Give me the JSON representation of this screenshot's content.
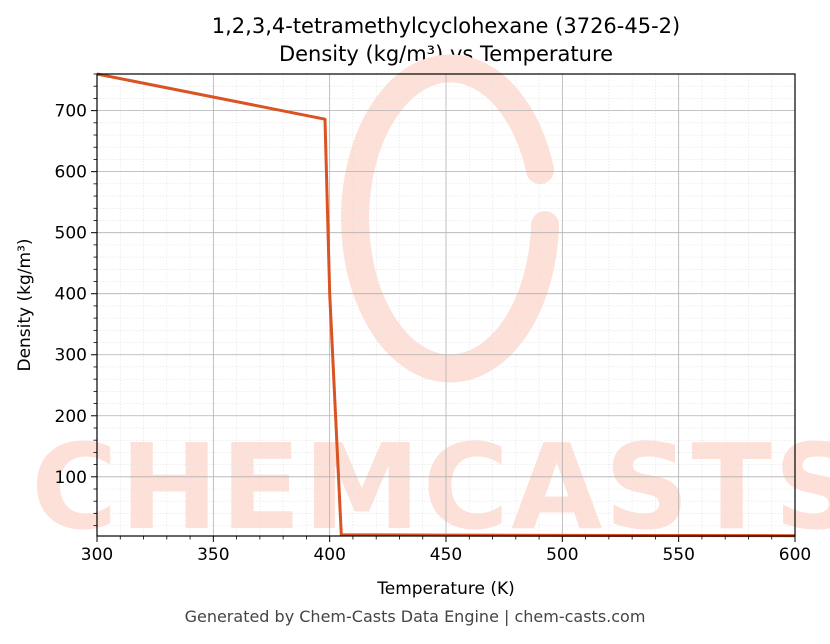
{
  "chart_data": {
    "type": "line",
    "title_line1": "1,2,3,4-tetramethylcyclohexane (3726-45-2)",
    "title_line2": "Density (kg/m³) vs Temperature",
    "xlabel": "Temperature (K)",
    "ylabel": "Density (kg/m³)",
    "xlim": [
      300,
      600
    ],
    "ylim": [
      3,
      760
    ],
    "xticks": [
      300,
      350,
      400,
      450,
      500,
      550,
      600
    ],
    "yticks": [
      100,
      200,
      300,
      400,
      500,
      600,
      700
    ],
    "grid": true,
    "series": [
      {
        "color": "#d95323",
        "x": [
          300,
          398,
          400,
          405,
          450,
          500,
          550,
          600
        ],
        "y": [
          760,
          686,
          400,
          5,
          4.5,
          4,
          3.8,
          3.5
        ]
      }
    ],
    "watermark_text": "CHEMCASTS",
    "watermark_color": "#fde0d8"
  },
  "footer": "Generated by Chem-Casts Data Engine | chem-casts.com"
}
